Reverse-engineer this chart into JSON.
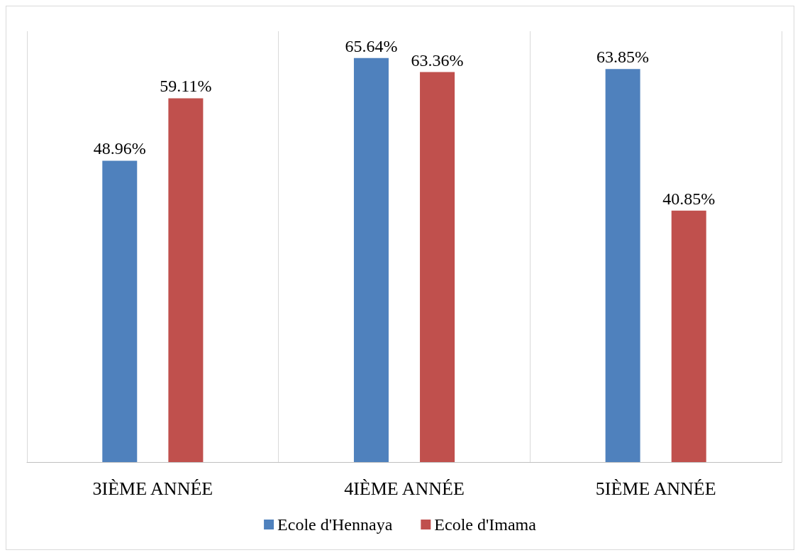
{
  "chart_data": {
    "type": "bar",
    "categories": [
      "3IÈME ANNÉE",
      "4IÈME ANNÉE",
      "5IÈME ANNÉE"
    ],
    "series": [
      {
        "name": "Ecole d'Hennaya",
        "color": "#4f81bd",
        "values": [
          48.96,
          65.64,
          63.85
        ],
        "value_labels": [
          "48.96%",
          "65.64%",
          "63.85%"
        ]
      },
      {
        "name": "Ecole d'Imama",
        "color": "#c0504d",
        "values": [
          59.11,
          63.36,
          40.85
        ],
        "value_labels": [
          "59.11%",
          "63.36%",
          "40.85%"
        ]
      }
    ],
    "grid": "x",
    "legend": "bottom",
    "tick_labels": "x"
  }
}
